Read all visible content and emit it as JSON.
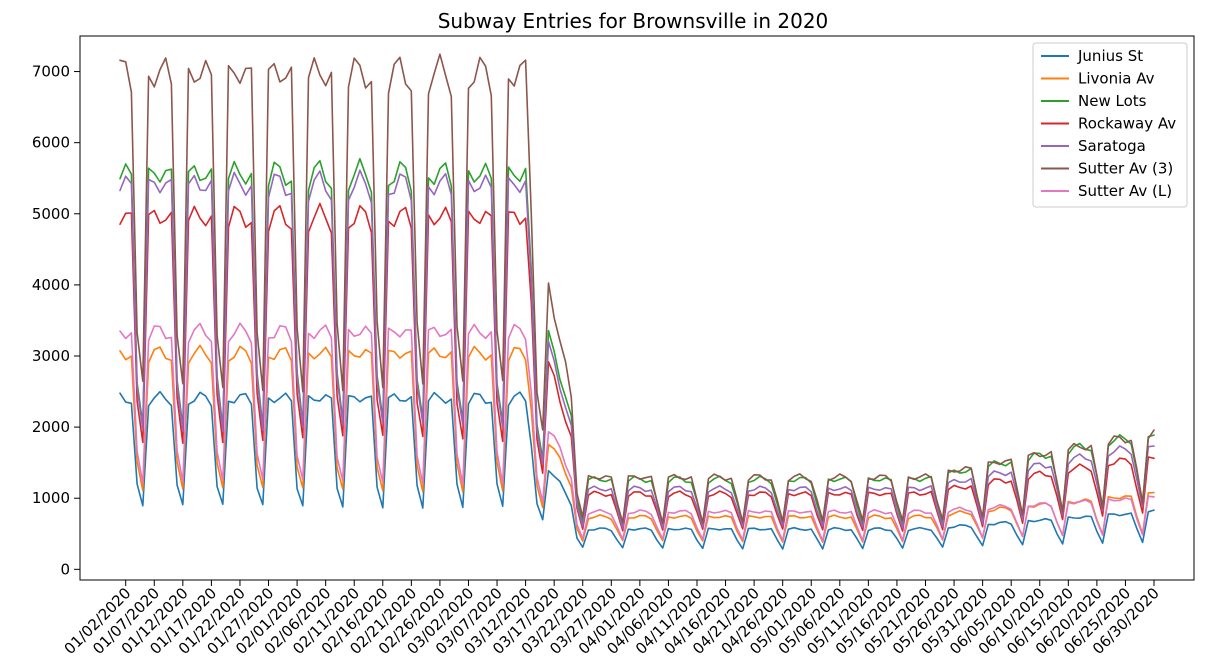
{
  "chart_data": {
    "type": "line",
    "title": "Subway Entries for Brownsville in 2020",
    "xlabel": "",
    "ylabel": "",
    "x_start": "01/01/2020",
    "x_end": "06/30/2020",
    "xlim": [
      "12/25/2019",
      "07/07/2020"
    ],
    "ylim": [
      -150,
      7500
    ],
    "yticks": [
      0,
      1000,
      2000,
      3000,
      4000,
      5000,
      6000,
      7000
    ],
    "xtick_labels": [
      "01/02/2020",
      "01/07/2020",
      "01/12/2020",
      "01/17/2020",
      "01/22/2020",
      "01/27/2020",
      "02/01/2020",
      "02/06/2020",
      "02/11/2020",
      "02/16/2020",
      "02/21/2020",
      "02/26/2020",
      "03/02/2020",
      "03/07/2020",
      "03/12/2020",
      "03/17/2020",
      "03/22/2020",
      "03/27/2020",
      "04/01/2020",
      "04/06/2020",
      "04/11/2020",
      "04/16/2020",
      "04/21/2020",
      "04/26/2020",
      "05/01/2020",
      "05/06/2020",
      "05/11/2020",
      "05/16/2020",
      "05/21/2020",
      "05/26/2020",
      "05/31/2020",
      "06/05/2020",
      "06/10/2020",
      "06/15/2020",
      "06/20/2020",
      "06/25/2020",
      "06/30/2020"
    ],
    "grid": false,
    "legend_position": "top-right",
    "series": [
      {
        "name": "Junius St",
        "color": "#1f77b4",
        "normal_weekday": 2380,
        "covid_weekday": 560,
        "covid_weekend": 300,
        "recovery_weekday": 800
      },
      {
        "name": "Livonia Av",
        "color": "#ff7f0e",
        "normal_weekday": 3000,
        "covid_weekday": 730,
        "covid_weekend": 400,
        "recovery_weekday": 1050
      },
      {
        "name": "New Lots",
        "color": "#2ca02c",
        "normal_weekday": 5500,
        "covid_weekday": 1250,
        "covid_weekend": 650,
        "recovery_weekday": 1900
      },
      {
        "name": "Rockaway Av",
        "color": "#d62728",
        "normal_weekday": 4900,
        "covid_weekday": 1050,
        "covid_weekend": 560,
        "recovery_weekday": 1580
      },
      {
        "name": "Saratoga",
        "color": "#9467bd",
        "normal_weekday": 5350,
        "covid_weekday": 1120,
        "covid_weekend": 600,
        "recovery_weekday": 1750
      },
      {
        "name": "Sutter Av (3)",
        "color": "#8c564b",
        "normal_weekday": 6900,
        "covid_weekday": 1280,
        "covid_weekend": 680,
        "recovery_weekday": 1900
      },
      {
        "name": "Sutter Av (L)",
        "color": "#e377c2",
        "normal_weekday": 3300,
        "covid_weekday": 800,
        "covid_weekend": 420,
        "recovery_weekday": 1000
      }
    ]
  }
}
